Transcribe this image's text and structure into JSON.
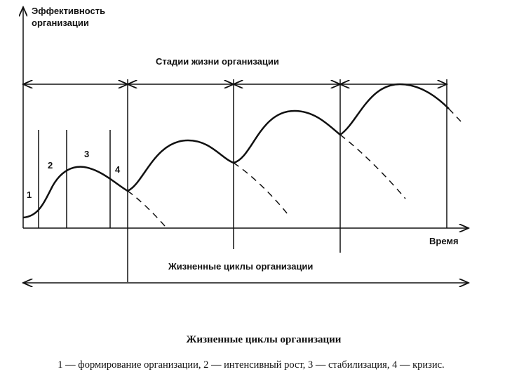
{
  "axis": {
    "y_label_line1": "Эффективность",
    "y_label_line2": "организации",
    "x_label": "Время"
  },
  "stages_title": "Стадии жизни организации",
  "stage_numbers": [
    "1",
    "2",
    "3",
    "4"
  ],
  "cycles_title": "Жизненные циклы организации",
  "caption": {
    "title": "Жизненные циклы организации",
    "legend": "1 — формирование организации, 2 — интенсивный рост, 3 — стабилизация, 4 — кризис."
  }
}
